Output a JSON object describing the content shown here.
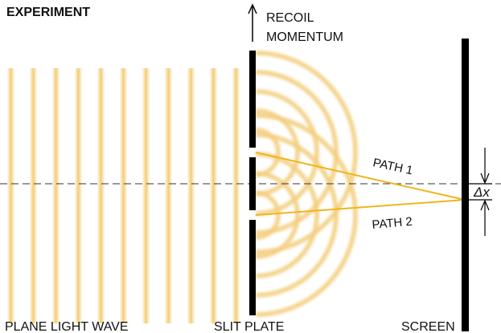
{
  "title": "EXPERIMENT",
  "labels": {
    "recoil_line1": "RECOIL",
    "recoil_line2": "MOMENTUM",
    "path1": "PATH 1",
    "path2": "PATH 2",
    "delta_x": "Δx",
    "plane_wave": "PLANE LIGHT WAVE",
    "slit_plate": "SLIT PLATE",
    "screen": "SCREEN"
  },
  "colors": {
    "wave": "#f5d58a",
    "path": "#f0b41e",
    "plate": "#000000",
    "axis": "#333333"
  },
  "icons": {
    "recoil_arrow": "arrow-up-icon",
    "delta_arrows": "arrow-pair-icon"
  }
}
